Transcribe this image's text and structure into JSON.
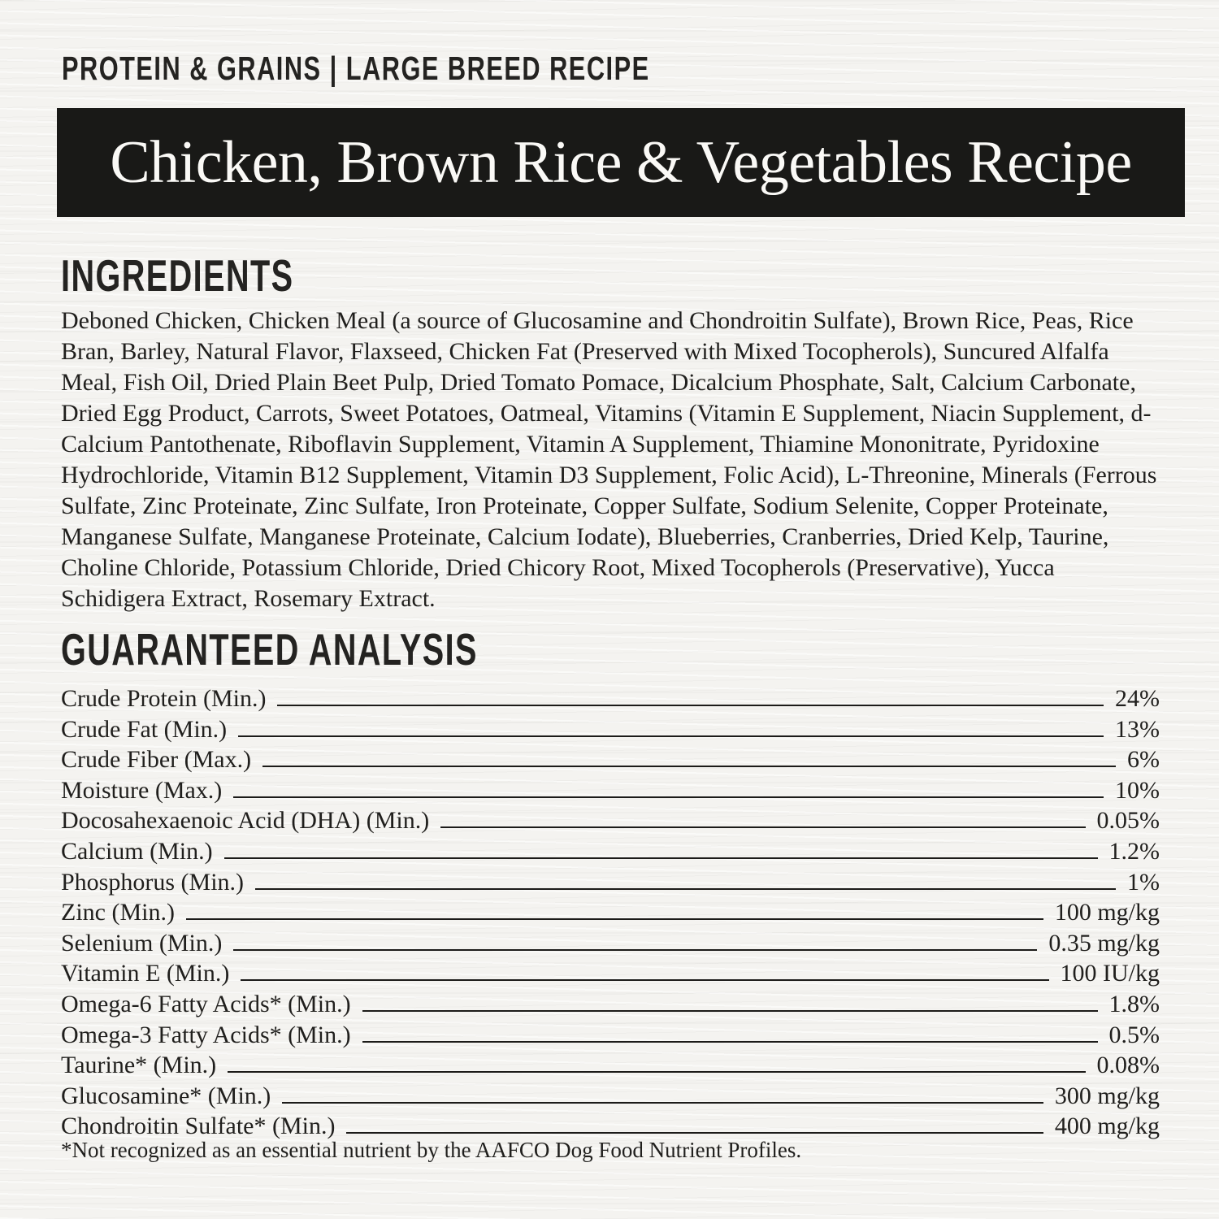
{
  "header": {
    "eyebrow": "PROTEIN & GRAINS | LARGE BREED RECIPE",
    "title": "Chicken, Brown Rice & Vegetables Recipe"
  },
  "ingredients": {
    "heading": "INGREDIENTS",
    "text": "Deboned Chicken, Chicken Meal (a source of Glucosamine and Chondroitin Sulfate), Brown Rice, Peas, Rice Bran, Barley, Natural Flavor, Flaxseed, Chicken Fat (Preserved with Mixed Tocopherols), Suncured Alfalfa Meal, Fish Oil, Dried Plain Beet Pulp, Dried Tomato Pomace, Dicalcium Phosphate, Salt, Calcium Carbonate, Dried Egg Product, Carrots, Sweet Potatoes, Oatmeal, Vitamins (Vitamin E Supplement, Niacin Supplement, d-Calcium Pantothenate, Riboflavin Supplement, Vitamin A Supplement, Thiamine Mononitrate, Pyridoxine Hydrochloride, Vitamin B12 Supplement, Vitamin D3 Supplement, Folic Acid), L-Threonine, Minerals (Ferrous Sulfate, Zinc Proteinate, Zinc Sulfate, Iron Proteinate, Copper Sulfate, Sodium Selenite, Copper Proteinate, Manganese Sulfate, Manganese Proteinate, Calcium Iodate), Blueberries, Cranberries, Dried Kelp, Taurine, Choline Chloride, Potassium Chloride, Dried Chicory Root, Mixed Tocopherols (Preservative), Yucca Schidigera Extract, Rosemary Extract."
  },
  "guaranteed_analysis": {
    "heading": "GUARANTEED ANALYSIS",
    "rows": [
      {
        "label": "Crude Protein (Min.)",
        "value": "24%"
      },
      {
        "label": "Crude Fat (Min.)",
        "value": "13%"
      },
      {
        "label": "Crude Fiber (Max.)",
        "value": "6%"
      },
      {
        "label": "Moisture (Max.)",
        "value": "10%"
      },
      {
        "label": "Docosahexaenoic Acid (DHA) (Min.)",
        "value": "0.05%"
      },
      {
        "label": "Calcium (Min.)",
        "value": "1.2%"
      },
      {
        "label": "Phosphorus (Min.)",
        "value": "1%"
      },
      {
        "label": "Zinc (Min.)",
        "value": "100 mg/kg"
      },
      {
        "label": "Selenium (Min.)",
        "value": "0.35 mg/kg"
      },
      {
        "label": "Vitamin E (Min.)",
        "value": "100 IU/kg"
      },
      {
        "label": "Omega-6 Fatty Acids* (Min.)",
        "value": "1.8%"
      },
      {
        "label": "Omega-3 Fatty Acids* (Min.)",
        "value": "0.5%"
      },
      {
        "label": "Taurine* (Min.)",
        "value": "0.08%"
      },
      {
        "label": "Glucosamine* (Min.)",
        "value": "300 mg/kg"
      },
      {
        "label": "Chondroitin Sulfate* (Min.)",
        "value": "400 mg/kg"
      }
    ],
    "footnote": "*Not recognized as an essential nutrient by the AAFCO Dog Food Nutrient Profiles."
  },
  "colors": {
    "banner_bg": "#191917",
    "banner_text": "#faf9f6",
    "body_text": "#201f1d",
    "page_bg": "#f4f3f0",
    "leader_line": "#1c1b19"
  }
}
